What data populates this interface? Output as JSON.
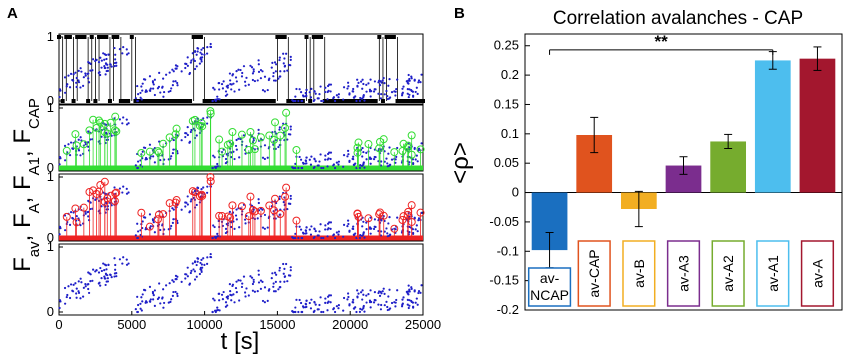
{
  "panel_a": {
    "letter": "A",
    "xlabel": "t [s]",
    "ylabel": {
      "parts": [
        {
          "main": "F",
          "sub": "av"
        },
        {
          "main": ", F",
          "sub": "A"
        },
        {
          "main": ", F",
          "sub": "A1"
        },
        {
          "main": ",  F",
          "sub": "CAP"
        }
      ]
    },
    "x_ticks": [
      "0",
      "5000",
      "10000",
      "15000",
      "20000",
      "25000"
    ],
    "y_ticks": [
      "0",
      "1"
    ],
    "colors": {
      "cap": "#000000",
      "av": "#1f1fc8",
      "a1": "#33dd33",
      "a": "#ee2222"
    }
  },
  "panel_b": {
    "letter": "B",
    "title": "Correlation avalanches - CAP",
    "ylabel": "<ρ>",
    "significance": "**",
    "y_ticks": [
      "0.25",
      "0.2",
      "0.15",
      "0.1",
      "0.05",
      "0",
      "-0.05",
      "-0.1",
      "-0.15",
      "-0.2"
    ]
  },
  "chart_data": [
    {
      "type": "scatter",
      "panel": "A",
      "xlabel": "t [s]",
      "xlim": [
        0,
        25000
      ],
      "subplots": [
        {
          "series": [
            "F_CAP (binary, black)",
            "F_av (blue dots)"
          ],
          "ylim": [
            0,
            1
          ],
          "cap_on_intervals": [
            [
              0,
              5000
            ],
            [
              9000,
              10000
            ],
            [
              14500,
              15500
            ],
            [
              17000,
              18000
            ],
            [
              22000,
              23000
            ]
          ],
          "av_segments": [
            [
              0,
              4800,
              0.1,
              0.75
            ],
            [
              5200,
              7000,
              0.05,
              0.3
            ],
            [
              7000,
              10500,
              0.1,
              0.8
            ],
            [
              10500,
              14000,
              0.05,
              0.5
            ],
            [
              14000,
              16000,
              0.2,
              0.7
            ],
            [
              16000,
              25000,
              0.02,
              0.25
            ]
          ]
        },
        {
          "series": [
            "F_A1 (green stems)",
            "F_av (blue dots)"
          ],
          "ylim": [
            0,
            1
          ]
        },
        {
          "series": [
            "F_A (red stems)",
            "F_av (blue dots)"
          ],
          "ylim": [
            0,
            1
          ]
        },
        {
          "series": [
            "F_av (blue dots)"
          ],
          "ylim": [
            0,
            1
          ]
        }
      ]
    },
    {
      "type": "bar",
      "panel": "B",
      "title": "Correlation avalanches - CAP",
      "ylabel": "<ρ>",
      "ylim": [
        -0.2,
        0.27
      ],
      "categories": [
        "av-NCAP",
        "av-CAP",
        "av-B",
        "av-A3",
        "av-A2",
        "av-A1",
        "av-A"
      ],
      "category_label_lines": [
        [
          "av-",
          "NCAP"
        ],
        [
          "av-CAP"
        ],
        [
          "av-B"
        ],
        [
          "av-A3"
        ],
        [
          "av-A2"
        ],
        [
          "av-A1"
        ],
        [
          "av-A"
        ]
      ],
      "values": [
        -0.098,
        0.098,
        -0.028,
        0.046,
        0.087,
        0.225,
        0.228
      ],
      "errors": [
        0.03,
        0.03,
        0.03,
        0.015,
        0.012,
        0.015,
        0.02
      ],
      "colors": [
        "#1a6fc0",
        "#e0531e",
        "#f2ae22",
        "#7b2d8e",
        "#76ac2e",
        "#4dbeee",
        "#a3172e"
      ],
      "significance": {
        "label": "**",
        "between": [
          "av-NCAP",
          "av-A1"
        ],
        "y": 0.243
      }
    }
  ]
}
